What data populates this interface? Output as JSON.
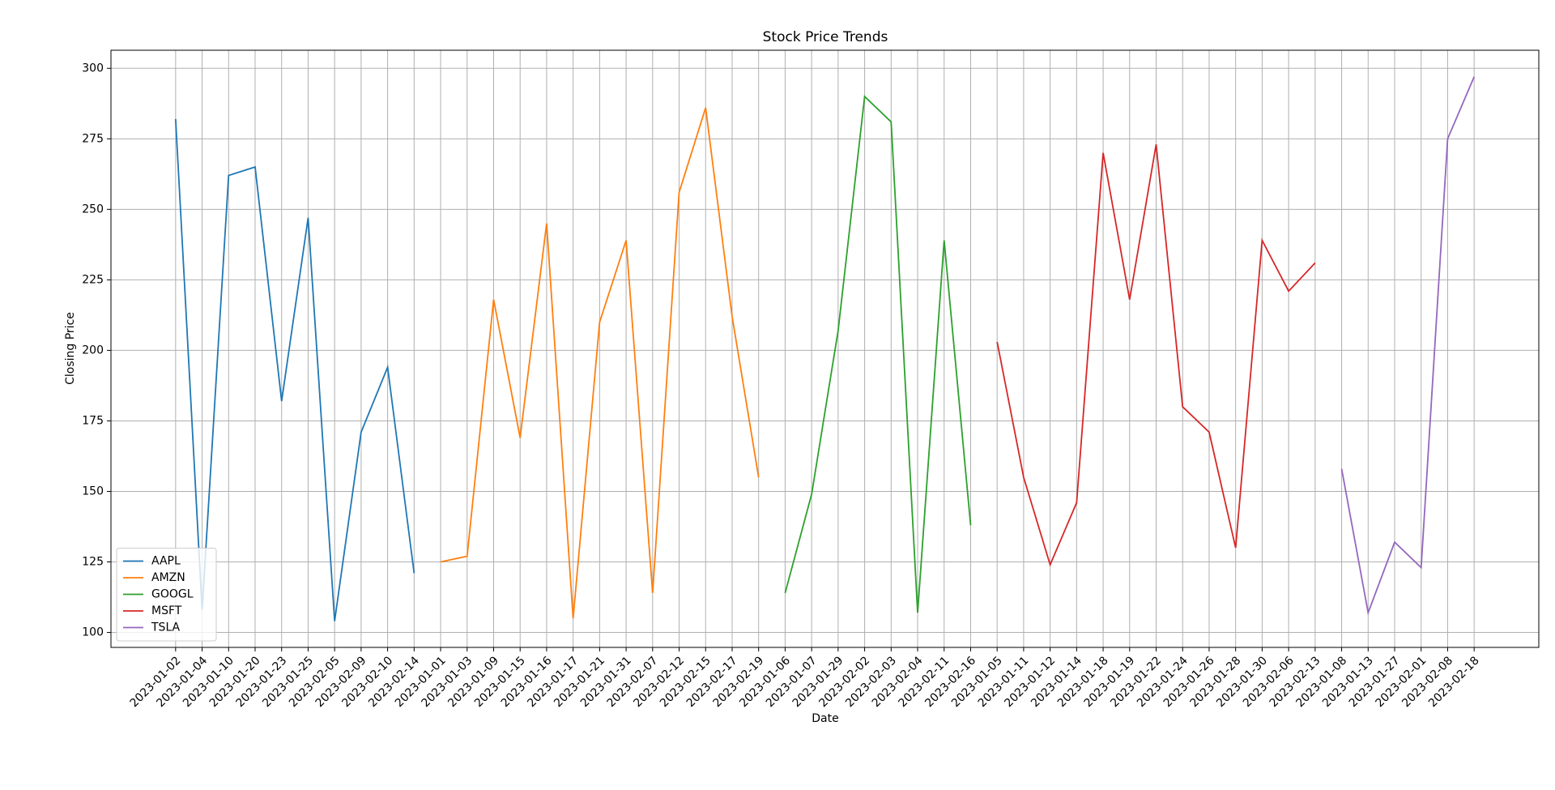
{
  "chart_data": {
    "type": "line",
    "title": "Stock Price Trends",
    "x_label": "Date",
    "y_label": "Closing Price",
    "categories": [
      "2023-01-02",
      "2023-01-04",
      "2023-01-10",
      "2023-01-20",
      "2023-01-23",
      "2023-01-25",
      "2023-02-05",
      "2023-02-09",
      "2023-02-10",
      "2023-02-14",
      "2023-01-01",
      "2023-01-03",
      "2023-01-09",
      "2023-01-15",
      "2023-01-16",
      "2023-01-17",
      "2023-01-21",
      "2023-01-31",
      "2023-02-07",
      "2023-02-12",
      "2023-02-15",
      "2023-02-17",
      "2023-02-19",
      "2023-01-06",
      "2023-01-07",
      "2023-01-29",
      "2023-02-02",
      "2023-02-03",
      "2023-02-04",
      "2023-02-11",
      "2023-02-16",
      "2023-01-05",
      "2023-01-11",
      "2023-01-12",
      "2023-01-14",
      "2023-01-18",
      "2023-01-19",
      "2023-01-22",
      "2023-01-24",
      "2023-01-26",
      "2023-01-28",
      "2023-01-30",
      "2023-02-06",
      "2023-02-13",
      "2023-01-08",
      "2023-01-13",
      "2023-01-27",
      "2023-02-01",
      "2023-02-08",
      "2023-02-18"
    ],
    "series": [
      {
        "name": "AAPL",
        "color": "#1f77b4",
        "values": [
          282,
          108,
          262,
          265,
          182,
          247,
          104,
          171,
          194,
          121,
          null,
          null,
          null,
          null,
          null,
          null,
          null,
          null,
          null,
          null,
          null,
          null,
          null,
          null,
          null,
          null,
          null,
          null,
          null,
          null,
          null,
          null,
          null,
          null,
          null,
          null,
          null,
          null,
          null,
          null,
          null,
          null,
          null,
          null,
          null,
          null,
          null,
          null,
          null,
          null
        ]
      },
      {
        "name": "AMZN",
        "color": "#ff7f0e",
        "values": [
          null,
          null,
          null,
          null,
          null,
          null,
          null,
          null,
          null,
          null,
          125,
          127,
          218,
          169,
          245,
          105,
          210,
          239,
          114,
          256,
          286,
          212,
          155,
          null,
          null,
          null,
          null,
          null,
          null,
          null,
          null,
          null,
          null,
          null,
          null,
          null,
          null,
          null,
          null,
          null,
          null,
          null,
          null,
          null,
          null,
          null,
          null,
          null,
          null,
          null
        ]
      },
      {
        "name": "GOOGL",
        "color": "#2ca02c",
        "values": [
          null,
          null,
          null,
          null,
          null,
          null,
          null,
          null,
          null,
          null,
          null,
          null,
          null,
          null,
          null,
          null,
          null,
          null,
          null,
          null,
          null,
          null,
          null,
          114,
          149,
          207,
          290,
          281,
          107,
          239,
          138,
          null,
          null,
          null,
          null,
          null,
          null,
          null,
          null,
          null,
          null,
          null,
          null,
          null,
          null,
          null,
          null,
          null,
          null,
          null
        ]
      },
      {
        "name": "MSFT",
        "color": "#d62728",
        "values": [
          null,
          null,
          null,
          null,
          null,
          null,
          null,
          null,
          null,
          null,
          null,
          null,
          null,
          null,
          null,
          null,
          null,
          null,
          null,
          null,
          null,
          null,
          null,
          null,
          null,
          null,
          null,
          null,
          null,
          null,
          null,
          203,
          155,
          124,
          146,
          270,
          218,
          273,
          180,
          171,
          130,
          239,
          221,
          231,
          null,
          null,
          null,
          null,
          null,
          null
        ]
      },
      {
        "name": "TSLA",
        "color": "#9467bd",
        "values": [
          null,
          null,
          null,
          null,
          null,
          null,
          null,
          null,
          null,
          null,
          null,
          null,
          null,
          null,
          null,
          null,
          null,
          null,
          null,
          null,
          null,
          null,
          null,
          null,
          null,
          null,
          null,
          null,
          null,
          null,
          null,
          null,
          null,
          null,
          null,
          null,
          null,
          null,
          null,
          null,
          null,
          null,
          null,
          null,
          158,
          107,
          132,
          123,
          275,
          297
        ]
      }
    ],
    "ylim": [
      94.7,
      306.4
    ],
    "yticks": [
      100,
      125,
      150,
      175,
      200,
      225,
      250,
      275,
      300
    ],
    "grid": true,
    "legend": "lower left"
  }
}
